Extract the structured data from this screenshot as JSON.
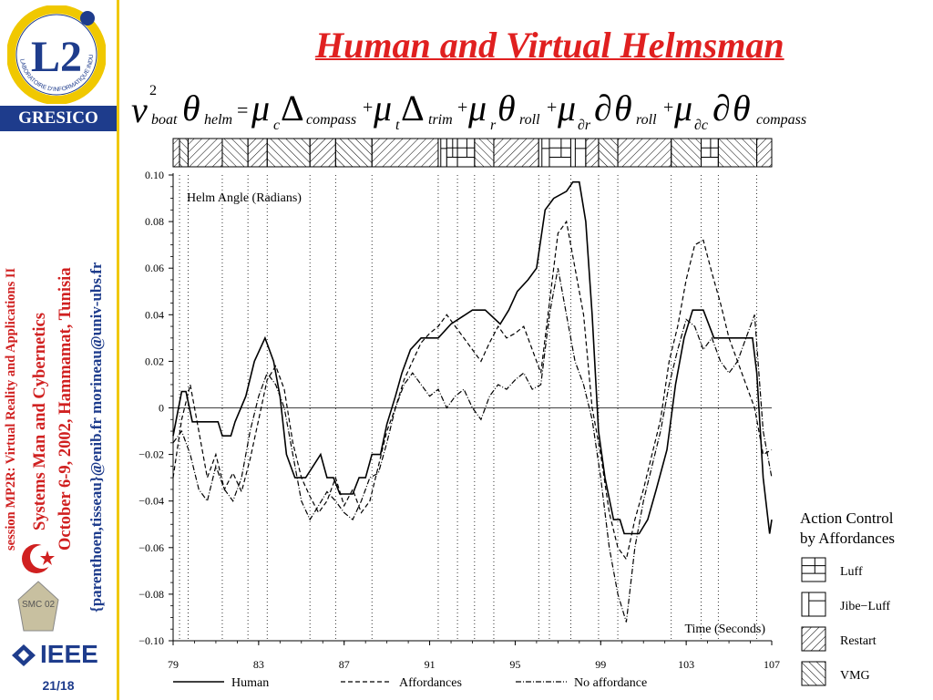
{
  "sidebar": {
    "logo_text": "L2",
    "logo_ring": "LABORATOIRE D'INFORMATIQUE INDUSTRIELLE",
    "gresico": "GRESICO",
    "session": "session MP2R: Virtual Reality and Applications II",
    "conference": "Systems Man and Cybernetics",
    "dates": "October 6-9, 2002, Hammamat, Tunisia",
    "emails": "{parenthoen,tisseau}@enib.fr  morineau@univ-ubs.fr",
    "smc_badge": "SMC 02",
    "ieee": "IEEE",
    "page": "21/18"
  },
  "slide": {
    "title": "Human and Virtual Helmsman"
  },
  "chart_data": {
    "type": "line",
    "title": "",
    "inner_label": "Helm Angle (Radians)",
    "xlabel": "Time (Seconds)",
    "ylabel": "",
    "xlim": [
      79,
      107
    ],
    "ylim": [
      -0.1,
      0.1
    ],
    "xticks": [
      "79",
      "83",
      "87",
      "91",
      "95",
      "99",
      "103",
      "107"
    ],
    "yticks": [
      "0.10",
      "0.08",
      "0.06",
      "0.04",
      "0.02",
      "0",
      "−0.02",
      "−0.04",
      "−0.06",
      "−0.08",
      "−0.10"
    ],
    "ytick_values": [
      0.1,
      0.08,
      0.06,
      0.04,
      0.02,
      0,
      -0.02,
      -0.04,
      -0.06,
      -0.08,
      -0.1
    ],
    "xtick_values": [
      79,
      83,
      87,
      91,
      95,
      99,
      103,
      107
    ],
    "grid_vertical_x": [
      79.3,
      79.7,
      81.3,
      82.5,
      83.4,
      85.4,
      86.6,
      88.3,
      91.4,
      92.3,
      93.1,
      94.0,
      96.1,
      96.6,
      97.6,
      98.9,
      99.8,
      102.3,
      103.7,
      104.5,
      106.3
    ],
    "series": [
      {
        "name": "Human",
        "style": "solid",
        "x": [
          79,
          79.4,
          79.6,
          79.9,
          80.1,
          81.1,
          81.3,
          81.7,
          81.9,
          82.4,
          82.8,
          83.3,
          83.7,
          84.0,
          84.3,
          84.7,
          85.2,
          85.9,
          86.2,
          86.5,
          86.8,
          87.4,
          87.7,
          88.0,
          88.3,
          88.7,
          89.0,
          89.4,
          89.7,
          90.1,
          90.6,
          90.9,
          91.4,
          92.0,
          93.0,
          93.3,
          93.6,
          94.3,
          94.7,
          95.1,
          95.6,
          96.0,
          96.4,
          96.8,
          97.4,
          97.7,
          98.0,
          98.3,
          98.6,
          98.9,
          99.2,
          99.6,
          99.9,
          100.1,
          100.4,
          100.8,
          101.2,
          101.6,
          102.1,
          102.5,
          102.9,
          103.3,
          103.8,
          104.3,
          104.8,
          105.2,
          105.6,
          106.1,
          106.3,
          106.6,
          106.9,
          107
        ],
        "y": [
          -0.012,
          0.007,
          0.007,
          -0.006,
          -0.006,
          -0.006,
          -0.012,
          -0.012,
          -0.006,
          0.005,
          0.02,
          0.03,
          0.02,
          0.005,
          -0.02,
          -0.03,
          -0.03,
          -0.02,
          -0.03,
          -0.03,
          -0.037,
          -0.037,
          -0.03,
          -0.03,
          -0.02,
          -0.02,
          -0.007,
          0.005,
          0.015,
          0.025,
          0.03,
          0.03,
          0.03,
          0.036,
          0.042,
          0.042,
          0.042,
          0.036,
          0.042,
          0.05,
          0.055,
          0.06,
          0.085,
          0.09,
          0.093,
          0.097,
          0.097,
          0.08,
          0.04,
          -0.01,
          -0.03,
          -0.048,
          -0.048,
          -0.054,
          -0.054,
          -0.054,
          -0.048,
          -0.035,
          -0.018,
          0.01,
          0.03,
          0.042,
          0.042,
          0.03,
          0.03,
          0.03,
          0.03,
          0.03,
          0.015,
          -0.03,
          -0.054,
          -0.048
        ]
      },
      {
        "name": "Affordances",
        "style": "dashed",
        "x": [
          79,
          79.4,
          79.8,
          80.2,
          80.6,
          81.0,
          81.4,
          81.8,
          82.2,
          82.6,
          83.0,
          83.4,
          83.8,
          84.2,
          84.6,
          85.0,
          85.4,
          85.8,
          86.2,
          86.6,
          87.0,
          87.4,
          87.8,
          88.2,
          88.6,
          89.0,
          89.4,
          89.8,
          90.2,
          90.6,
          91.0,
          91.4,
          91.8,
          92.2,
          92.6,
          93.0,
          93.4,
          93.8,
          94.2,
          94.6,
          95.0,
          95.4,
          95.8,
          96.2,
          96.6,
          97.0,
          97.4,
          97.8,
          98.2,
          98.6,
          99.0,
          99.4,
          99.8,
          100.2,
          100.6,
          101.0,
          101.4,
          101.8,
          102.2,
          102.6,
          103.0,
          103.4,
          103.8,
          104.2,
          104.6,
          105.0,
          105.4,
          105.8,
          106.2,
          106.6,
          107
        ],
        "y": [
          -0.03,
          -0.005,
          0.01,
          -0.01,
          -0.03,
          -0.02,
          -0.035,
          -0.028,
          -0.036,
          -0.022,
          -0.005,
          0.012,
          0.018,
          0.008,
          -0.015,
          -0.03,
          -0.038,
          -0.045,
          -0.04,
          -0.03,
          -0.042,
          -0.035,
          -0.045,
          -0.04,
          -0.025,
          -0.01,
          0.0,
          0.012,
          0.02,
          0.028,
          0.032,
          0.035,
          0.04,
          0.035,
          0.03,
          0.025,
          0.02,
          0.028,
          0.035,
          0.03,
          0.032,
          0.035,
          0.025,
          0.015,
          0.045,
          0.075,
          0.08,
          0.06,
          0.04,
          0.0,
          -0.02,
          -0.045,
          -0.06,
          -0.065,
          -0.048,
          -0.035,
          -0.02,
          -0.005,
          0.02,
          0.035,
          0.055,
          0.07,
          0.072,
          0.058,
          0.045,
          0.03,
          0.02,
          0.01,
          0.0,
          -0.02,
          -0.018
        ]
      },
      {
        "name": "No affordance",
        "style": "dashdot",
        "x": [
          79,
          79.4,
          79.8,
          80.2,
          80.6,
          81.0,
          81.4,
          81.8,
          82.2,
          82.6,
          83.0,
          83.4,
          83.8,
          84.2,
          84.6,
          85.0,
          85.4,
          85.8,
          86.2,
          86.6,
          87.0,
          87.4,
          87.8,
          88.2,
          88.6,
          89.0,
          89.4,
          89.8,
          90.2,
          90.6,
          91.0,
          91.4,
          91.8,
          92.2,
          92.6,
          93.0,
          93.4,
          93.8,
          94.2,
          94.6,
          95.0,
          95.4,
          95.8,
          96.2,
          96.6,
          97.0,
          97.4,
          97.8,
          98.2,
          98.6,
          99.0,
          99.4,
          99.8,
          100.2,
          100.6,
          101.0,
          101.4,
          101.8,
          102.2,
          102.6,
          103.0,
          103.4,
          103.8,
          104.2,
          104.6,
          105.0,
          105.4,
          105.8,
          106.2,
          106.6,
          107
        ],
        "y": [
          -0.015,
          -0.01,
          -0.02,
          -0.035,
          -0.04,
          -0.025,
          -0.035,
          -0.04,
          -0.03,
          -0.01,
          0.005,
          0.015,
          0.01,
          0.0,
          -0.02,
          -0.04,
          -0.048,
          -0.042,
          -0.036,
          -0.04,
          -0.045,
          -0.048,
          -0.04,
          -0.03,
          -0.028,
          -0.015,
          0.0,
          0.01,
          0.015,
          0.01,
          0.005,
          0.008,
          0.0,
          0.005,
          0.008,
          0.0,
          -0.005,
          0.005,
          0.01,
          0.008,
          0.012,
          0.015,
          0.008,
          0.01,
          0.04,
          0.06,
          0.04,
          0.02,
          0.01,
          -0.005,
          -0.03,
          -0.06,
          -0.08,
          -0.092,
          -0.06,
          -0.04,
          -0.025,
          -0.01,
          0.01,
          0.025,
          0.038,
          0.035,
          0.025,
          0.03,
          0.02,
          0.015,
          0.02,
          0.03,
          0.04,
          -0.01,
          -0.03
        ]
      }
    ],
    "action_bar": {
      "segments": [
        {
          "from": 79.0,
          "to": 79.3,
          "type": "Restart"
        },
        {
          "from": 79.3,
          "to": 79.7,
          "type": "VMG"
        },
        {
          "from": 79.7,
          "to": 81.3,
          "type": "Restart"
        },
        {
          "from": 81.3,
          "to": 82.5,
          "type": "VMG"
        },
        {
          "from": 82.5,
          "to": 83.4,
          "type": "Restart"
        },
        {
          "from": 83.4,
          "to": 85.4,
          "type": "VMG"
        },
        {
          "from": 85.4,
          "to": 86.6,
          "type": "Restart"
        },
        {
          "from": 86.6,
          "to": 88.3,
          "type": "VMG"
        },
        {
          "from": 88.3,
          "to": 91.4,
          "type": "Restart"
        },
        {
          "from": 91.4,
          "to": 91.8,
          "type": "Jibe−Luff"
        },
        {
          "from": 91.8,
          "to": 92.3,
          "type": "Luff"
        },
        {
          "from": 92.3,
          "to": 93.1,
          "type": "Luff"
        },
        {
          "from": 93.1,
          "to": 94.0,
          "type": "VMG"
        },
        {
          "from": 94.0,
          "to": 96.1,
          "type": "Restart"
        },
        {
          "from": 96.1,
          "to": 96.6,
          "type": "Jibe−Luff"
        },
        {
          "from": 96.6,
          "to": 97.6,
          "type": "Luff"
        },
        {
          "from": 97.6,
          "to": 98.3,
          "type": "Jibe−Luff"
        },
        {
          "from": 98.3,
          "to": 98.9,
          "type": "Restart"
        },
        {
          "from": 98.9,
          "to": 99.8,
          "type": "VMG"
        },
        {
          "from": 99.8,
          "to": 102.3,
          "type": "Restart"
        },
        {
          "from": 102.3,
          "to": 103.7,
          "type": "VMG"
        },
        {
          "from": 103.7,
          "to": 104.5,
          "type": "Luff"
        },
        {
          "from": 104.5,
          "to": 106.3,
          "type": "VMG"
        },
        {
          "from": 106.3,
          "to": 107.0,
          "type": "Restart"
        }
      ]
    },
    "legend": {
      "placement": "bottom",
      "entries": [
        "Human",
        "Affordances",
        "No affordance"
      ]
    },
    "action_legend": {
      "title_line1": "Action Control",
      "title_line2": "by Affordances",
      "placement": "right",
      "entries": [
        "Luff",
        "Jibe−Luff",
        "Restart",
        "VMG"
      ]
    }
  }
}
